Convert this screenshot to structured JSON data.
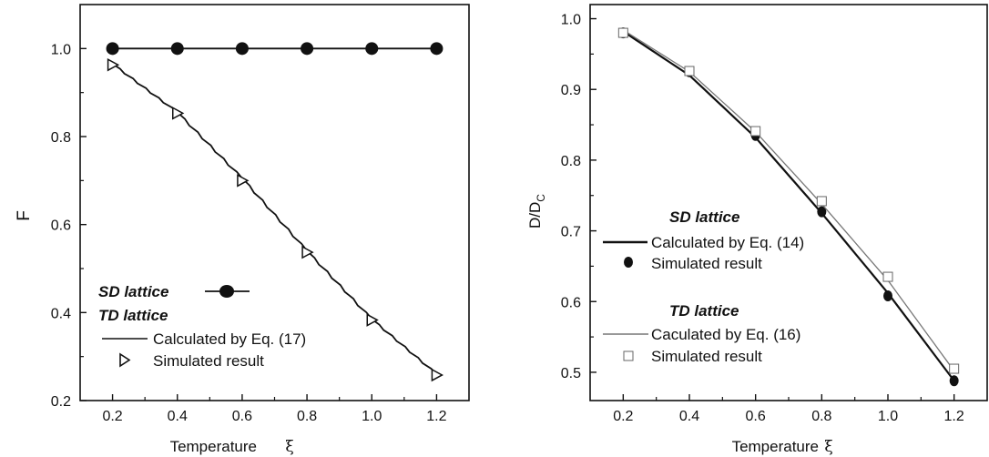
{
  "chart_data": [
    {
      "type": "line",
      "xlabel": "Temperature",
      "xlabel_symbol": "ξ",
      "ylabel": "F",
      "xlim": [
        0.1,
        1.3
      ],
      "ylim": [
        0.2,
        1.1
      ],
      "xticks": [
        "0.2",
        "0.4",
        "0.6",
        "0.8",
        "1.0",
        "1.2"
      ],
      "yticks": [
        "0.2",
        "0.4",
        "0.6",
        "0.8",
        "1.0"
      ],
      "legend": {
        "title_sd": "SD lattice",
        "title_td": "TD lattice",
        "calc_label": "Calculated by Eq. (17)",
        "sim_label": "Simulated result"
      },
      "series": [
        {
          "name": "SD lattice",
          "marker": "filled-circle",
          "x": [
            0.2,
            0.4,
            0.6,
            0.8,
            1.0,
            1.2
          ],
          "values": [
            1.0,
            1.0,
            1.0,
            1.0,
            1.0,
            1.0
          ]
        },
        {
          "name": "Calculated by Eq. (17)",
          "marker": "none",
          "x": [
            0.2,
            0.4,
            0.6,
            0.8,
            1.0,
            1.2
          ],
          "values": [
            0.965,
            0.855,
            0.705,
            0.54,
            0.385,
            0.26
          ]
        },
        {
          "name": "Simulated result",
          "marker": "open-triangle-right",
          "x": [
            0.2,
            0.4,
            0.6,
            0.8,
            1.0,
            1.2
          ],
          "values": [
            0.963,
            0.853,
            0.7,
            0.537,
            0.383,
            0.258
          ]
        }
      ]
    },
    {
      "type": "line",
      "xlabel": "Temperature",
      "xlabel_symbol": "ξ",
      "ylabel": "D/D",
      "ylabel_sub": "C",
      "xlim": [
        0.1,
        1.3
      ],
      "ylim": [
        0.46,
        1.02
      ],
      "xticks": [
        "0.2",
        "0.4",
        "0.6",
        "0.8",
        "1.0",
        "1.2"
      ],
      "yticks": [
        "0.5",
        "0.6",
        "0.7",
        "0.8",
        "0.9",
        "1.0"
      ],
      "legend": {
        "title_sd": "SD lattice",
        "sd_calc_label": "Calculated by Eq. (14)",
        "sd_sim_label": "Simulated result",
        "title_td": "TD lattice",
        "td_calc_label": "Caculated by Eq. (16)",
        "td_sim_label": "Simulated result"
      },
      "series": [
        {
          "name": "Calculated by Eq. (14)",
          "marker": "none",
          "x": [
            0.2,
            0.4,
            0.6,
            0.8,
            1.0,
            1.2
          ],
          "values": [
            0.982,
            0.92,
            0.832,
            0.725,
            0.612,
            0.488
          ]
        },
        {
          "name": "Simulated result",
          "marker": "filled-circle",
          "x": [
            0.2,
            0.4,
            0.6,
            0.8,
            1.0,
            1.2
          ],
          "values": [
            0.98,
            0.925,
            0.835,
            0.727,
            0.608,
            0.488
          ]
        },
        {
          "name": "Caculated by Eq. (16)",
          "marker": "none",
          "x": [
            0.2,
            0.4,
            0.6,
            0.8,
            1.0,
            1.2
          ],
          "values": [
            0.984,
            0.925,
            0.84,
            0.738,
            0.63,
            0.502
          ]
        },
        {
          "name": "Simulated result",
          "marker": "open-square",
          "x": [
            0.2,
            0.4,
            0.6,
            0.8,
            1.0,
            1.2
          ],
          "values": [
            0.98,
            0.926,
            0.841,
            0.742,
            0.635,
            0.505
          ]
        }
      ]
    }
  ]
}
